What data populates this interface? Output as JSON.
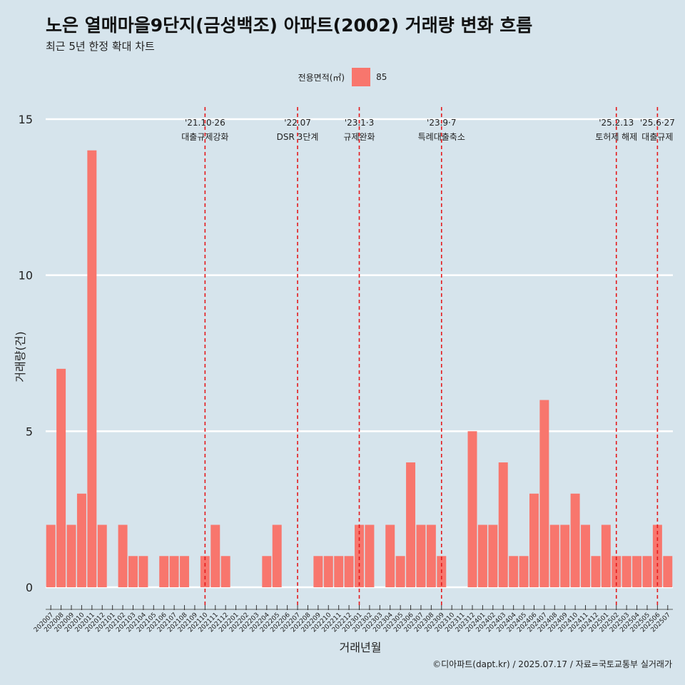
{
  "header": {
    "title": "노은 열매마을9단지(금성백조) 아파트(2002) 거래량 변화 흐름",
    "subtitle": "최근 5년 한정 확대 차트"
  },
  "legend": {
    "title": "전용면적(㎡)",
    "items": [
      {
        "label": "85",
        "color": "#f8766d"
      }
    ]
  },
  "caption": "©디아파트(dapt.kr) / 2025.07.17 / 자료=국토교통부 실거래가",
  "colors": {
    "background": "#d6e4ec",
    "bar": "#f8766d",
    "event_line": "#e41a1c",
    "grid": "#ffffff"
  },
  "chart_data": {
    "type": "bar",
    "xlabel": "거래년월",
    "ylabel": "거래량(건)",
    "ylim": [
      0,
      15
    ],
    "yticks": [
      0,
      5,
      10,
      15
    ],
    "grid": "horizontal major lines",
    "legend_position": "top",
    "categories": [
      "202007",
      "202008",
      "202009",
      "202010",
      "202011",
      "202012",
      "202101",
      "202102",
      "202103",
      "202104",
      "202105",
      "202106",
      "202107",
      "202108",
      "202109",
      "202110",
      "202111",
      "202112",
      "202201",
      "202202",
      "202203",
      "202204",
      "202205",
      "202206",
      "202207",
      "202208",
      "202209",
      "202210",
      "202211",
      "202212",
      "202301",
      "202302",
      "202303",
      "202304",
      "202305",
      "202306",
      "202307",
      "202308",
      "202309",
      "202310",
      "202311",
      "202312",
      "202401",
      "202402",
      "202403",
      "202404",
      "202405",
      "202406",
      "202407",
      "202408",
      "202409",
      "202410",
      "202411",
      "202412",
      "202501",
      "202502",
      "202503",
      "202504",
      "202505",
      "202506",
      "202507"
    ],
    "series": [
      {
        "name": "85",
        "values": [
          2,
          7,
          2,
          3,
          14,
          2,
          0,
          2,
          1,
          1,
          0,
          1,
          1,
          1,
          0,
          1,
          2,
          1,
          0,
          0,
          0,
          1,
          2,
          0,
          0,
          0,
          1,
          1,
          1,
          1,
          2,
          2,
          0,
          2,
          1,
          4,
          2,
          2,
          1,
          0,
          0,
          5,
          2,
          2,
          4,
          1,
          1,
          3,
          6,
          2,
          2,
          3,
          2,
          1,
          2,
          1,
          1,
          1,
          1,
          2,
          1
        ]
      }
    ],
    "annotations": [
      {
        "x": "202110",
        "date": "'21.10·26",
        "label": "대출규제강화"
      },
      {
        "x": "202207",
        "date": "'22.07",
        "label": "DSR 3단계"
      },
      {
        "x": "202301",
        "date": "'23.1·3",
        "label": "규제완화"
      },
      {
        "x": "202309",
        "date": "'23.9·7",
        "label": "특례대출축소"
      },
      {
        "x": "202502",
        "date": "'25.2.13",
        "label": "토허제 해제"
      },
      {
        "x": "202506",
        "date": "'25.6·27",
        "label": "대출규제"
      }
    ]
  }
}
